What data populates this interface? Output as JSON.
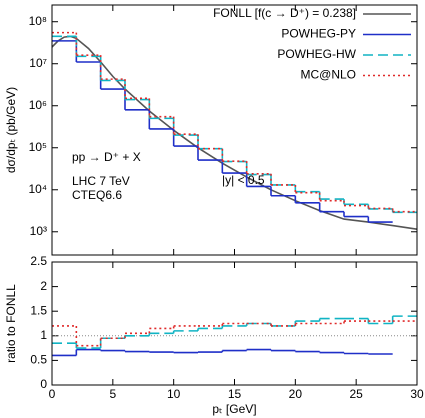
{
  "chart_data": [
    {
      "type": "step",
      "ylabel": "dσ/dpₜ (pb/GeV)",
      "annotations": [
        "pp → D⁺ + X",
        "LHC 7 TeV",
        "CTEQ6.6",
        "|y| < 0.5"
      ],
      "xlim": [
        0,
        30
      ],
      "xticks": [
        0,
        5,
        10,
        15,
        20,
        25,
        30
      ],
      "ylim": [
        280,
        250000000
      ],
      "log_y": true,
      "yticks": [
        {
          "value": 1000,
          "label": "10³"
        },
        {
          "value": 10000,
          "label": "10⁴"
        },
        {
          "value": 100000,
          "label": "10⁵"
        },
        {
          "value": 1000000,
          "label": "10⁶"
        },
        {
          "value": 10000000,
          "label": "10⁷"
        },
        {
          "value": 100000000,
          "label": "10⁸"
        }
      ],
      "legend": "upper right",
      "series": [
        {
          "name": "FONLL [f(c → D⁺) = 0.238]",
          "color": "#555555",
          "dash": "none",
          "kind": "line",
          "x": [
            0,
            0.5,
            1,
            1.5,
            2,
            3,
            4,
            5,
            6,
            8,
            10,
            12,
            14,
            16,
            18,
            20,
            22,
            24,
            26,
            28,
            30
          ],
          "values": [
            25000000,
            35000000,
            43000000,
            45000000,
            40000000,
            23000000,
            11000000,
            5000000,
            2500000,
            750000,
            260000,
            100000,
            43000,
            20000,
            10000,
            5500,
            3200,
            2000,
            1700,
            1400,
            1150
          ]
        },
        {
          "name": "POWHEG-PY",
          "color": "#1f2fc8",
          "dash": "none",
          "kind": "step",
          "bins": [
            0,
            2,
            4,
            6,
            8,
            10,
            12,
            14,
            16,
            18,
            20,
            22,
            24,
            26,
            28
          ],
          "values": [
            35000000,
            11000000,
            2500000,
            800000,
            280000,
            110000,
            51000,
            25000,
            12000,
            7200,
            4900,
            3000,
            2300,
            1700
          ]
        },
        {
          "name": "POWHEG-HW",
          "color": "#10b4c4",
          "dash": "10,5",
          "kind": "step",
          "bins": [
            0,
            2,
            4,
            6,
            8,
            10,
            12,
            14,
            16,
            18,
            20,
            22,
            24,
            26,
            28,
            30
          ],
          "values": [
            45000000,
            15000000,
            4000000,
            1400000,
            500000,
            200000,
            95000,
            47000,
            23000,
            13000,
            9000,
            6000,
            4500,
            3500,
            2900
          ]
        },
        {
          "name": "MC@NLO",
          "color": "#e02a2a",
          "dash": "2,3",
          "kind": "step",
          "bins": [
            0,
            2,
            4,
            6,
            8,
            10,
            12,
            14,
            16,
            18,
            20,
            22,
            24,
            26,
            28,
            30
          ],
          "values": [
            55000000,
            16000000,
            4300000,
            1500000,
            550000,
            210000,
            95000,
            48000,
            24000,
            13000,
            8500,
            5500,
            4200,
            3600,
            3000
          ]
        }
      ]
    },
    {
      "type": "step",
      "xlabel": "pₜ [GeV]",
      "ylabel": "ratio to FONLL",
      "xlim": [
        0,
        30
      ],
      "xticks": [
        0,
        5,
        10,
        15,
        20,
        25,
        30
      ],
      "ylim": [
        0,
        2.5
      ],
      "yticks": [
        0,
        0.5,
        1,
        1.5,
        2,
        2.5
      ],
      "reference": 1,
      "series": [
        {
          "color": "#1f2fc8",
          "dash": "none",
          "bins": [
            0,
            2,
            4,
            6,
            8,
            10,
            12,
            14,
            16,
            18,
            20,
            22,
            24,
            26,
            28
          ],
          "values": [
            0.6,
            0.72,
            0.7,
            0.68,
            0.67,
            0.66,
            0.67,
            0.7,
            0.72,
            0.7,
            0.68,
            0.66,
            0.64,
            0.63
          ]
        },
        {
          "color": "#10b4c4",
          "dash": "10,5",
          "bins": [
            0,
            2,
            4,
            6,
            8,
            10,
            12,
            14,
            16,
            18,
            20,
            22,
            24,
            26,
            28,
            30
          ],
          "values": [
            0.85,
            0.75,
            0.95,
            1.0,
            1.05,
            1.1,
            1.15,
            1.2,
            1.25,
            1.2,
            1.3,
            1.35,
            1.35,
            1.25,
            1.4
          ]
        },
        {
          "color": "#e02a2a",
          "dash": "2,3",
          "bins": [
            0,
            2,
            4,
            6,
            8,
            10,
            12,
            14,
            16,
            18,
            20,
            22,
            24,
            26,
            28,
            30
          ],
          "values": [
            1.2,
            0.8,
            0.95,
            1.05,
            1.15,
            1.2,
            1.2,
            1.25,
            1.25,
            1.2,
            1.25,
            1.25,
            1.3,
            1.3,
            1.3
          ]
        }
      ]
    }
  ]
}
